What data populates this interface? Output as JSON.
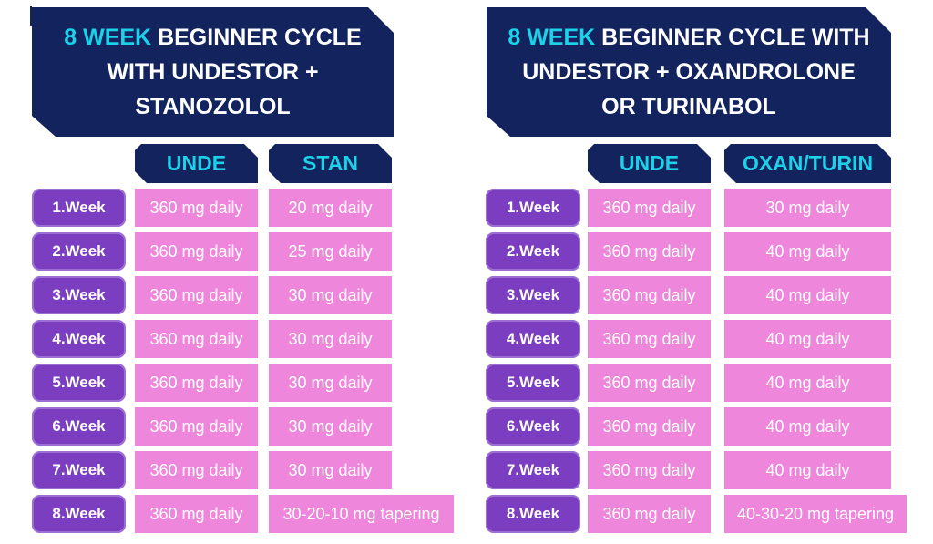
{
  "colors": {
    "navy": "#12235e",
    "cyan": "#1cd2e9",
    "purple": "#7b3ec0",
    "purple_outline": "#9e6fd3",
    "pink": "#ee86dc",
    "text": "#ffffff",
    "background": "#ffffff"
  },
  "left_table": {
    "title_lines": [
      {
        "highlight": "8 WEEK",
        "text": " BEGINNER CYCLE"
      },
      {
        "highlight": "",
        "text": "WITH UNDESTOR +"
      },
      {
        "highlight": "",
        "text": "STANOZOLOL"
      }
    ],
    "columns": [
      "UNDE",
      "STAN"
    ],
    "weeks": [
      "1.Week",
      "2.Week",
      "3.Week",
      "4.Week",
      "5.Week",
      "6.Week",
      "7.Week",
      "8.Week"
    ],
    "unde_values": [
      "360 mg daily",
      "360 mg daily",
      "360 mg daily",
      "360 mg daily",
      "360 mg daily",
      "360 mg daily",
      "360 mg daily",
      "360 mg daily"
    ],
    "stan_values": [
      "20 mg daily",
      "25 mg daily",
      "30 mg daily",
      "30 mg daily",
      "30 mg daily",
      "30 mg daily",
      "30 mg daily",
      "30-20-10 mg tapering"
    ]
  },
  "right_table": {
    "title_lines": [
      {
        "highlight": "8 WEEK",
        "text": " BEGINNER CYCLE WITH"
      },
      {
        "highlight": "",
        "text": "UNDESTOR + OXANDROLONE"
      },
      {
        "highlight": "",
        "text": "OR TURINABOL"
      }
    ],
    "columns": [
      "UNDE",
      "OXAN/TURIN"
    ],
    "weeks": [
      "1.Week",
      "2.Week",
      "3.Week",
      "4.Week",
      "5.Week",
      "6.Week",
      "7.Week",
      "8.Week"
    ],
    "unde_values": [
      "360 mg daily",
      "360 mg daily",
      "360 mg daily",
      "360 mg daily",
      "360 mg daily",
      "360 mg daily",
      "360 mg daily",
      "360 mg daily"
    ],
    "oxan_values": [
      "30 mg daily",
      "40 mg daily",
      "40 mg daily",
      "40 mg daily",
      "40 mg daily",
      "40 mg daily",
      "40 mg daily",
      "40-30-20 mg tapering"
    ]
  },
  "chart_data": [
    {
      "type": "table",
      "title": "8 WEEK BEGINNER CYCLE WITH UNDESTOR + STANOZOLOL",
      "columns": [
        "Week",
        "UNDE",
        "STAN"
      ],
      "rows": [
        [
          "1.Week",
          "360 mg daily",
          "20 mg daily"
        ],
        [
          "2.Week",
          "360 mg daily",
          "25 mg daily"
        ],
        [
          "3.Week",
          "360 mg daily",
          "30 mg daily"
        ],
        [
          "4.Week",
          "360 mg daily",
          "30 mg daily"
        ],
        [
          "5.Week",
          "360 mg daily",
          "30 mg daily"
        ],
        [
          "6.Week",
          "360 mg daily",
          "30 mg daily"
        ],
        [
          "7.Week",
          "360 mg daily",
          "30 mg daily"
        ],
        [
          "8.Week",
          "360 mg daily",
          "30-20-10 mg tapering"
        ]
      ]
    },
    {
      "type": "table",
      "title": "8 WEEK BEGINNER CYCLE WITH UNDESTOR + OXANDROLONE OR TURINABOL",
      "columns": [
        "Week",
        "UNDE",
        "OXAN/TURIN"
      ],
      "rows": [
        [
          "1.Week",
          "360 mg daily",
          "30 mg daily"
        ],
        [
          "2.Week",
          "360 mg daily",
          "40 mg daily"
        ],
        [
          "3.Week",
          "360 mg daily",
          "40 mg daily"
        ],
        [
          "4.Week",
          "360 mg daily",
          "40 mg daily"
        ],
        [
          "5.Week",
          "360 mg daily",
          "40 mg daily"
        ],
        [
          "6.Week",
          "360 mg daily",
          "40 mg daily"
        ],
        [
          "7.Week",
          "360 mg daily",
          "40 mg daily"
        ],
        [
          "8.Week",
          "360 mg daily",
          "40-30-20 mg tapering"
        ]
      ]
    }
  ]
}
